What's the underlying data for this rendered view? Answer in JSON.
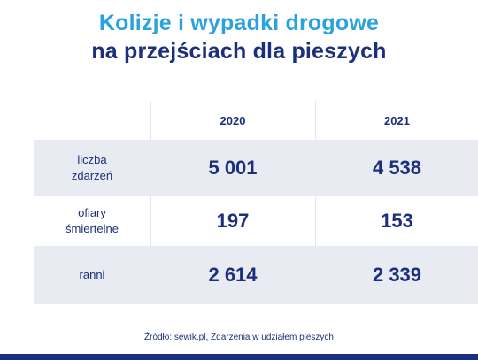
{
  "title_line1": "Kolizje i wypadki drogowe",
  "title_line2": "na przejściach dla pieszych",
  "chart_data": {
    "type": "table",
    "columns": [
      "2020",
      "2021"
    ],
    "rows": [
      {
        "label": "liczba\nzdarzeń",
        "values": [
          "5 001",
          "4 538"
        ]
      },
      {
        "label": "ofiary\nśmiertelne",
        "values": [
          "197",
          "153"
        ]
      },
      {
        "label": "ranni",
        "values": [
          "2 614",
          "2 339"
        ]
      }
    ]
  },
  "source": "Źródło: sewik.pl, Zdarzenia w udziałem pieszych",
  "colors": {
    "title_accent": "#2aa3dc",
    "navy": "#1c2f7c",
    "row_shade": "#e8ebf1"
  }
}
